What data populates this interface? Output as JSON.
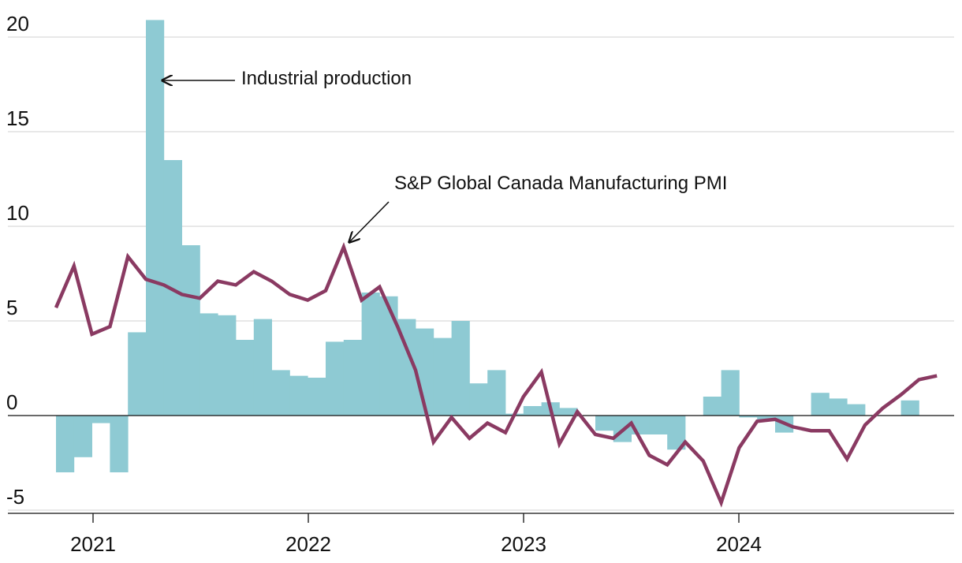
{
  "chart_data": {
    "type": "bar+line",
    "title": "",
    "xlabel": "",
    "ylabel": "",
    "ylim": [
      -5,
      20
    ],
    "yticks": [
      20,
      15,
      10,
      5,
      0,
      -5
    ],
    "x_tick_labels": [
      "2021",
      "2022",
      "2023",
      "2024"
    ],
    "grid": true,
    "start_month": "2020-11",
    "series": [
      {
        "name": "Industrial production",
        "type": "bar",
        "color": "#8ecad3",
        "values": [
          -3.0,
          -2.2,
          -0.4,
          -3.0,
          4.4,
          20.9,
          13.5,
          9.0,
          5.4,
          5.3,
          4.0,
          5.1,
          2.4,
          2.1,
          2.0,
          3.9,
          4.0,
          6.5,
          6.3,
          5.1,
          4.6,
          4.1,
          5.0,
          1.7,
          2.4,
          0.1,
          0.5,
          0.7,
          0.4,
          0.0,
          -0.8,
          -1.4,
          -1.0,
          -1.0,
          -1.8,
          0.0,
          1.0,
          2.4,
          -0.1,
          -0.3,
          -0.9,
          0.0,
          1.2,
          0.9,
          0.6,
          0.0,
          0.0,
          0.8
        ]
      },
      {
        "name": "S&P Global Canada Manufacturing PMI",
        "type": "line",
        "color": "#8a3a62",
        "values": [
          5.7,
          7.9,
          4.3,
          4.7,
          8.4,
          7.2,
          6.9,
          6.4,
          6.2,
          7.1,
          6.9,
          7.6,
          7.1,
          6.4,
          6.1,
          6.6,
          8.9,
          6.1,
          6.8,
          4.7,
          2.4,
          -1.4,
          -0.1,
          -1.2,
          -0.4,
          -0.9,
          1.0,
          2.3,
          -1.5,
          0.2,
          -1.0,
          -1.2,
          -0.4,
          -2.1,
          -2.6,
          -1.4,
          -2.4,
          -4.6,
          -1.7,
          -0.3,
          -0.2,
          -0.6,
          -0.8,
          -0.8,
          -2.3,
          -0.5,
          0.4,
          1.1,
          1.9,
          2.1
        ]
      }
    ],
    "annotations": [
      {
        "text": "Industrial production",
        "target_series": "Industrial production"
      },
      {
        "text": "S&P Global Canada Manufacturing PMI",
        "target_series": "S&P Global Canada Manufacturing PMI"
      }
    ]
  }
}
